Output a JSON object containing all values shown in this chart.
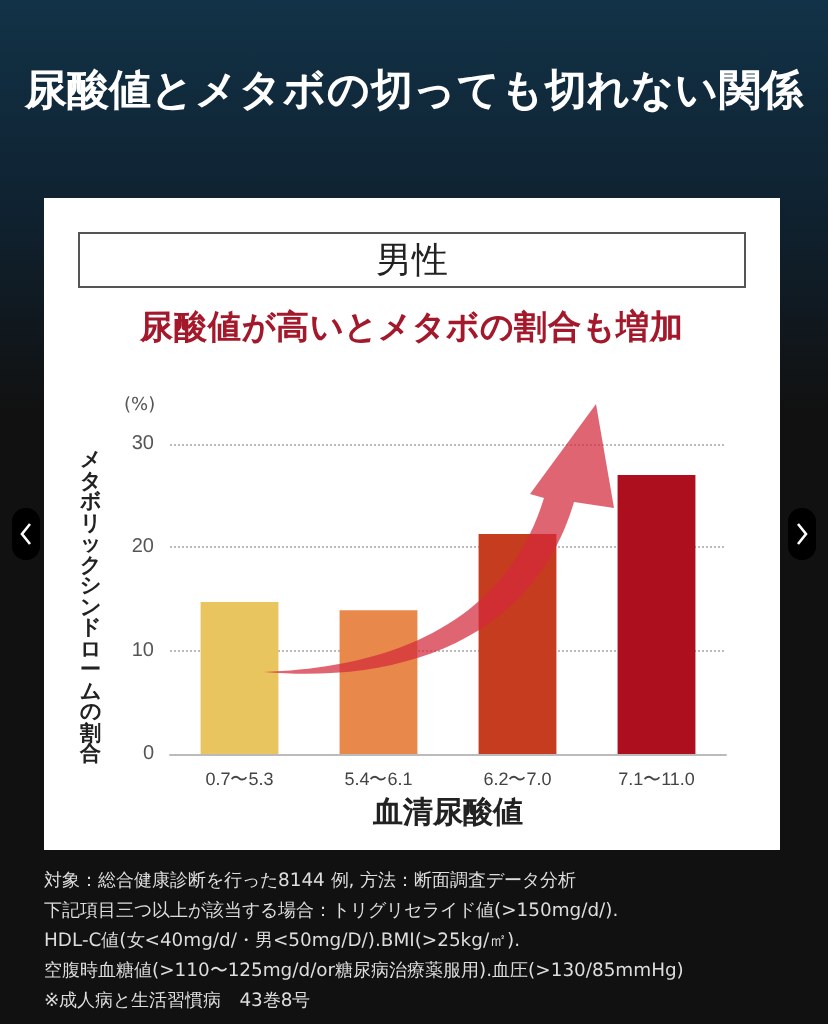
{
  "chart_data": {
    "type": "bar",
    "title": "尿酸値とメタボの切っても切れない関係",
    "subtitle": "男性",
    "xlabel": "血清尿酸値",
    "ylabel": "メタボリックシンドロームの割合",
    "categories": [
      "0.7〜5.3",
      "5.4〜6.1",
      "6.2〜7.0",
      "7.1〜11.0"
    ],
    "values": [
      14.7,
      13.9,
      21.3,
      27.0
    ],
    "colors": [
      "#e8c55e",
      "#e8884a",
      "#c63c1e",
      "#ad0f1e"
    ],
    "ylim": [
      0,
      30
    ],
    "yticks": [
      0,
      10,
      20,
      30
    ],
    "grid": "y",
    "annotations": [
      "尿酸値が高いとメタボの割合も増加",
      "(%)",
      "対象：総合健康診断を行った8144 例, 方法：断面調査データ分析",
      "下記項目三つ以上が該当する場合：トリグリセライド値(>150mg/d/).",
      "HDL-C値(女<40mg/d/・男<50mg/D/).BMI(>25kg/㎡).",
      "空腹時血糖値(>110〜125mg/d/or糖尿病治療薬服用).血圧(>130/85mmHg)",
      "※成人病と生活習慣病　43巻8号"
    ]
  }
}
